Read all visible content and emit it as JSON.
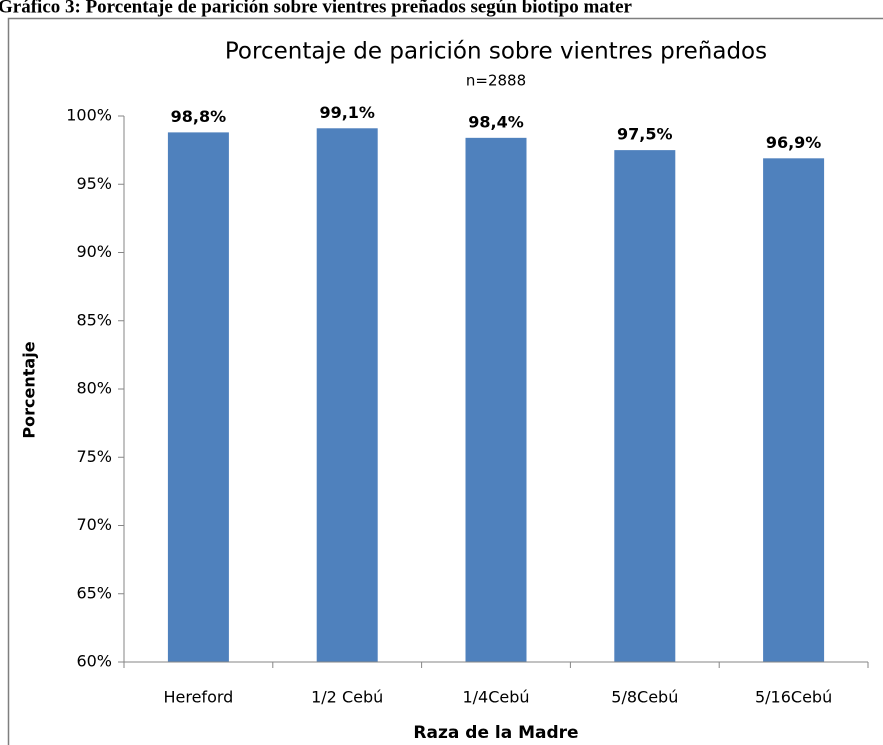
{
  "caption": "Gráfico 3: Porcentaje de parición sobre vientres preñados según biotipo mater",
  "chart_data": {
    "type": "bar",
    "title": "Porcentaje de parición sobre vientres   preñados",
    "subtitle": "n=2888",
    "x_label": "Raza de la Madre",
    "y_label": "Porcentaje",
    "categories": [
      "Hereford",
      "1/2 Cebú",
      "1/4Cebú",
      "5/8Cebú",
      "5/16Cebú"
    ],
    "values": [
      98.8,
      99.1,
      98.4,
      97.5,
      96.9
    ],
    "value_labels": [
      "98,8%",
      "99,1%",
      "98,4%",
      "97,5%",
      "96,9%"
    ],
    "color": "#4f81bd",
    "ylim": [
      60,
      100
    ],
    "yticks": [
      {
        "value": 60,
        "label": "60%"
      },
      {
        "value": 65,
        "label": "65%"
      },
      {
        "value": 70,
        "label": "70%"
      },
      {
        "value": 75,
        "label": "75%"
      },
      {
        "value": 80,
        "label": "80%"
      },
      {
        "value": 85,
        "label": "85%"
      },
      {
        "value": 90,
        "label": "90%"
      },
      {
        "value": 95,
        "label": "95%"
      },
      {
        "value": 100,
        "label": "100%"
      }
    ],
    "grid": false
  }
}
